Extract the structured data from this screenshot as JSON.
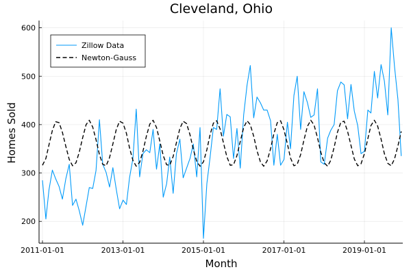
{
  "chart_data": {
    "type": "line",
    "title": "Cleveland, Ohio",
    "xlabel": "Month",
    "ylabel": "Homes Sold",
    "x_range": [
      "2010-12-01",
      "2019-12-15"
    ],
    "ylim": [
      155,
      615
    ],
    "x_ticks": [
      {
        "date": "2011-01-01",
        "label": "2011-01-01"
      },
      {
        "date": "2013-01-01",
        "label": "2013-01-01"
      },
      {
        "date": "2015-01-01",
        "label": "2015-01-01"
      },
      {
        "date": "2017-01-01",
        "label": "2017-01-01"
      },
      {
        "date": "2019-01-01",
        "label": "2019-01-01"
      }
    ],
    "y_ticks": [
      200,
      300,
      400,
      500,
      600
    ],
    "grid": true,
    "legend_position": "top-left",
    "series": [
      {
        "name": "Zillow Data",
        "color": "#009af9",
        "style": "solid",
        "start": "2011-01-01",
        "frequency": "monthly",
        "values": [
          285,
          205,
          265,
          306,
          288,
          272,
          246,
          288,
          318,
          233,
          246,
          222,
          192,
          232,
          270,
          268,
          305,
          410,
          318,
          301,
          271,
          311,
          266,
          226,
          244,
          235,
          290,
          330,
          432,
          292,
          340,
          348,
          342,
          390,
          308,
          360,
          250,
          278,
          333,
          258,
          340,
          370,
          290,
          310,
          330,
          360,
          292,
          394,
          165,
          278,
          330,
          394,
          390,
          474,
          376,
          421,
          416,
          330,
          392,
          310,
          420,
          482,
          522,
          414,
          457,
          445,
          430,
          430,
          408,
          316,
          380,
          316,
          328,
          405,
          350,
          460,
          500,
          390,
          468,
          446,
          415,
          420,
          474,
          323,
          318,
          372,
          388,
          400,
          470,
          488,
          482,
          412,
          483,
          428,
          398,
          340,
          345,
          430,
          424,
          510,
          455,
          524,
          490,
          420,
          600,
          520,
          452,
          335
        ]
      },
      {
        "name": "Newton-Gauss",
        "color": "#000000",
        "style": "dashed",
        "start": "2011-01-01",
        "frequency": "monthly",
        "values": [
          316,
          330,
          358,
          388,
          406,
          404,
          384,
          355,
          328,
          315,
          321,
          343,
          373,
          400,
          409,
          395,
          369,
          338,
          318,
          315,
          332,
          360,
          390,
          407,
          403,
          382,
          352,
          326,
          314,
          322,
          345,
          376,
          401,
          409,
          394,
          366,
          336,
          317,
          316,
          334,
          363,
          392,
          407,
          402,
          379,
          349,
          324,
          314,
          323,
          348,
          378,
          403,
          408,
          391,
          363,
          334,
          316,
          317,
          336,
          365,
          394,
          408,
          400,
          376,
          346,
          323,
          314,
          325,
          350,
          381,
          404,
          408,
          389,
          360,
          331,
          315,
          318,
          338,
          368,
          396,
          409,
          399,
          373,
          343,
          321,
          314,
          326,
          353,
          384,
          405,
          407,
          386,
          357,
          329,
          315,
          319,
          340,
          371,
          398,
          409,
          397,
          370,
          340,
          320,
          315,
          329,
          356,
          386
        ]
      }
    ]
  }
}
